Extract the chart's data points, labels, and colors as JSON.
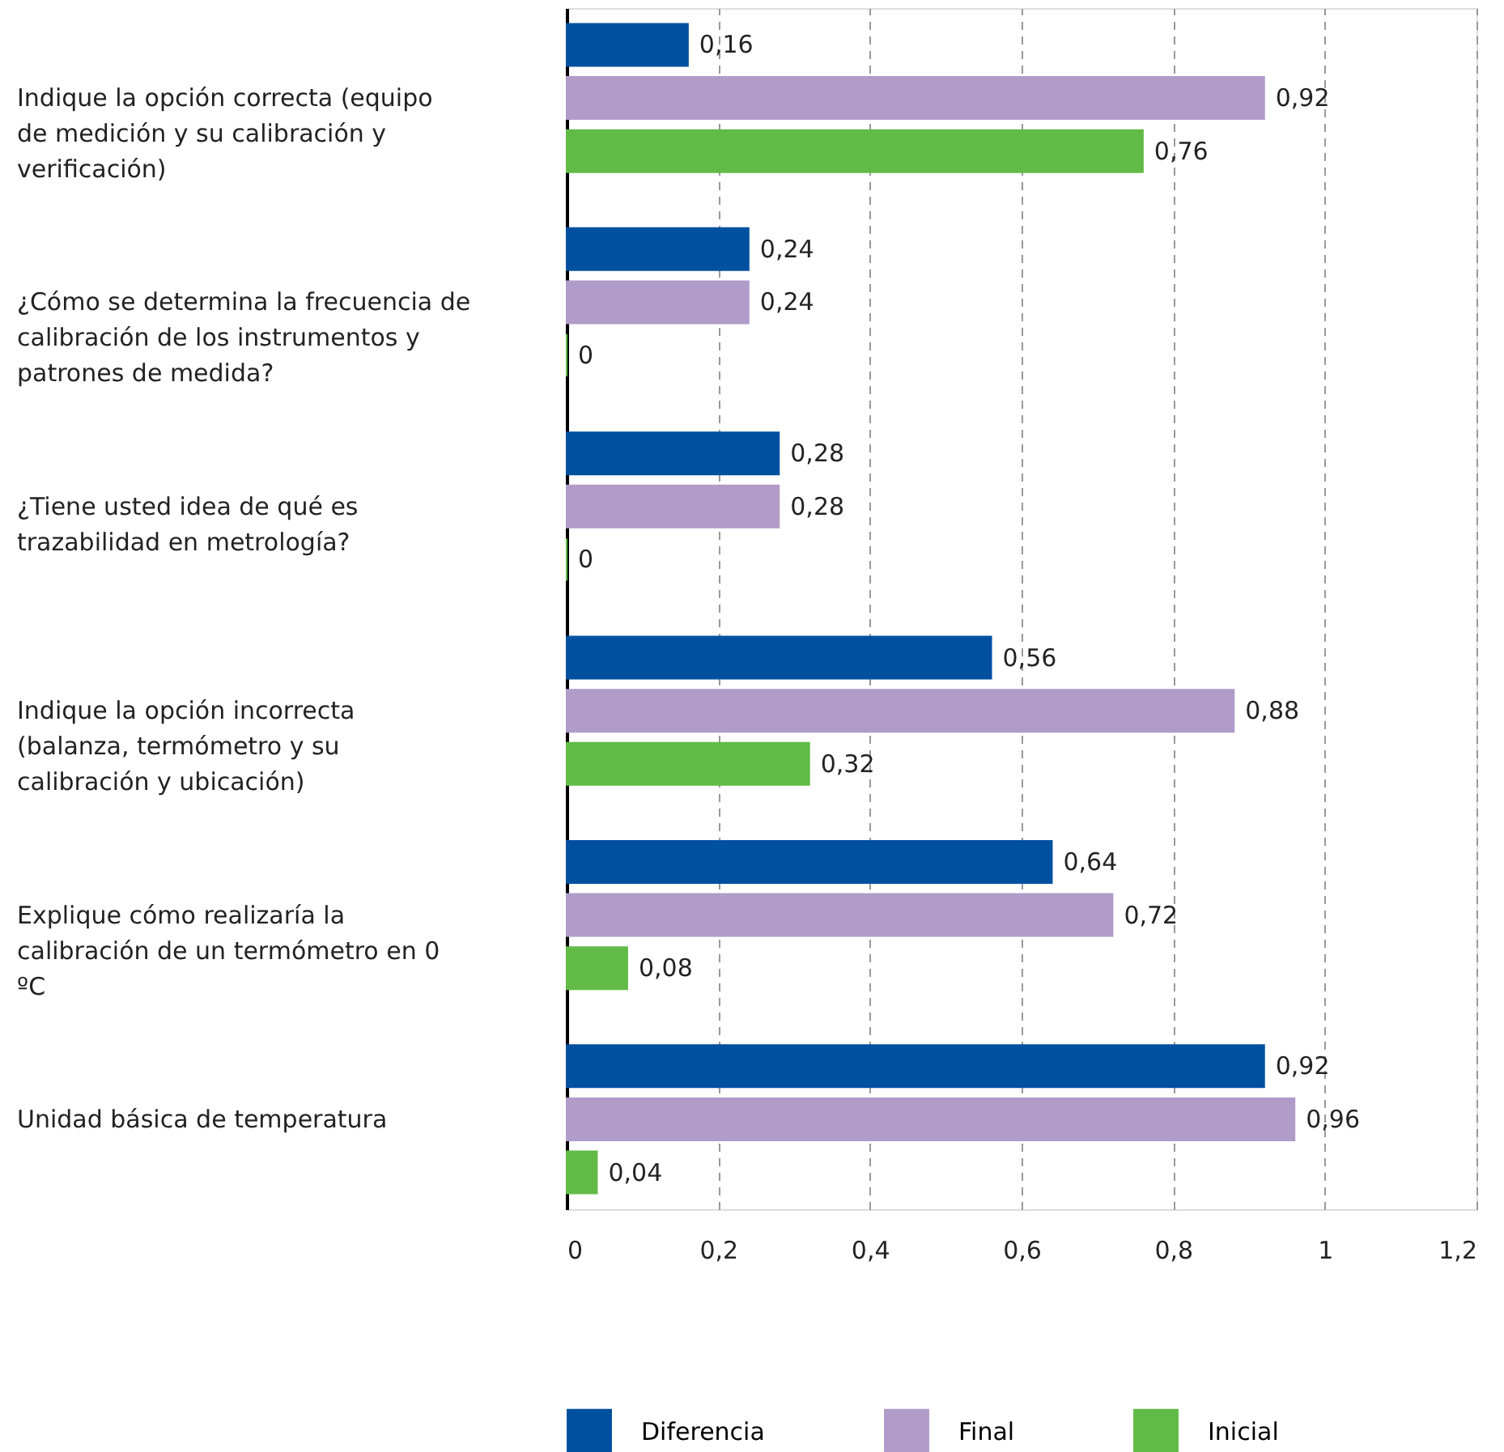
{
  "chart_data": {
    "type": "bar",
    "orientation": "horizontal",
    "categories": [
      "Indique la opción correcta (equipo de medición y su calibración y verificación)",
      "¿Cómo se determina la frecuencia de calibración de los instrumentos y patrones de medida?",
      "¿Tiene usted idea de qué es trazabilidad en metrología?",
      "Indique la opción incorrecta (balanza, termómetro y su calibración y ubicación)",
      "Explique cómo realizaría la calibración de un termómetro en 0 ºC",
      "Unidad básica de temperatura"
    ],
    "series": [
      {
        "name": "Diferencia",
        "color": "#0050a0",
        "values": [
          0.16,
          0.24,
          0.28,
          0.56,
          0.64,
          0.92
        ],
        "value_labels": [
          "0,16",
          "0,24",
          "0,28",
          "0,56",
          "0,64",
          "0,92"
        ]
      },
      {
        "name": "Final",
        "color": "#b09bc9",
        "values": [
          0.92,
          0.24,
          0.28,
          0.88,
          0.72,
          0.96
        ],
        "value_labels": [
          "0,92",
          "0,24",
          "0,28",
          "0,88",
          "0,72",
          "0,96"
        ]
      },
      {
        "name": "Inicial",
        "color": "#62bb46",
        "values": [
          0.76,
          0,
          0,
          0.32,
          0.08,
          0.04
        ],
        "value_labels": [
          "0,76",
          "0",
          "0",
          "0,32",
          "0,08",
          "0,04"
        ]
      }
    ],
    "xlim": [
      0,
      1.2
    ],
    "xticks": [
      0,
      {
        "value": 0.2,
        "label": "0,2"
      },
      {
        "value": 0.4,
        "label": "0,4"
      },
      {
        "value": 0.6,
        "label": "0,6"
      },
      {
        "value": 0.8,
        "label": "0,8"
      },
      1,
      {
        "value": 1.2,
        "label": "1,2"
      }
    ],
    "grid": "x",
    "legend": "bottom"
  }
}
